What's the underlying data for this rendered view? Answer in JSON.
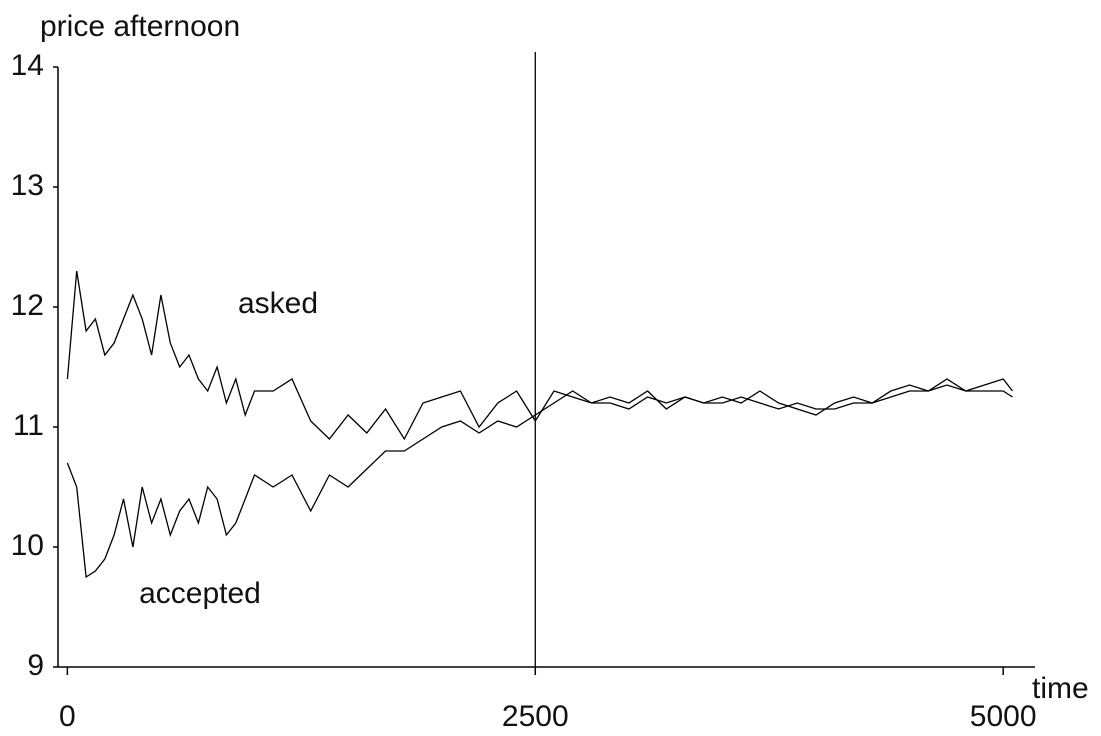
{
  "chart_data": {
    "type": "line",
    "title": "price afternoon",
    "xlabel": "time",
    "x": [
      0,
      50,
      100,
      150,
      200,
      250,
      300,
      350,
      400,
      450,
      500,
      550,
      600,
      650,
      700,
      750,
      800,
      850,
      900,
      950,
      1000,
      1100,
      1200,
      1300,
      1400,
      1500,
      1600,
      1700,
      1800,
      1900,
      2000,
      2100,
      2200,
      2300,
      2400,
      2500,
      2600,
      2700,
      2800,
      2900,
      3000,
      3100,
      3200,
      3300,
      3400,
      3500,
      3600,
      3700,
      3800,
      3900,
      4000,
      4100,
      4200,
      4300,
      4400,
      4500,
      4600,
      4700,
      4800,
      4900,
      5000,
      5050
    ],
    "series": [
      {
        "name": "asked",
        "color": "#000000",
        "values": [
          11.4,
          12.3,
          11.8,
          11.9,
          11.6,
          11.7,
          11.9,
          12.1,
          11.9,
          11.6,
          12.1,
          11.7,
          11.5,
          11.6,
          11.4,
          11.3,
          11.5,
          11.2,
          11.4,
          11.1,
          11.3,
          11.3,
          11.4,
          11.05,
          10.9,
          11.1,
          10.95,
          11.15,
          10.9,
          11.2,
          11.25,
          11.3,
          11.0,
          11.2,
          11.3,
          11.05,
          11.3,
          11.25,
          11.2,
          11.25,
          11.2,
          11.3,
          11.15,
          11.25,
          11.2,
          11.25,
          11.2,
          11.3,
          11.2,
          11.15,
          11.1,
          11.2,
          11.25,
          11.2,
          11.3,
          11.35,
          11.3,
          11.4,
          11.3,
          11.35,
          11.4,
          11.3
        ]
      },
      {
        "name": "accepted",
        "color": "#000000",
        "values": [
          10.7,
          10.5,
          9.75,
          9.8,
          9.9,
          10.1,
          10.4,
          10.0,
          10.5,
          10.2,
          10.4,
          10.1,
          10.3,
          10.4,
          10.2,
          10.5,
          10.4,
          10.1,
          10.2,
          10.4,
          10.6,
          10.5,
          10.6,
          10.3,
          10.6,
          10.5,
          10.65,
          10.8,
          10.8,
          10.9,
          11.0,
          11.05,
          10.95,
          11.05,
          11.0,
          11.1,
          11.2,
          11.3,
          11.2,
          11.2,
          11.15,
          11.25,
          11.2,
          11.25,
          11.2,
          11.2,
          11.25,
          11.2,
          11.15,
          11.2,
          11.15,
          11.15,
          11.2,
          11.2,
          11.25,
          11.3,
          11.3,
          11.35,
          11.3,
          11.3,
          11.3,
          11.25
        ]
      }
    ],
    "vertical_line": 2500,
    "xlim": [
      -50,
      5170
    ],
    "xticks": [
      0,
      2500,
      5000
    ],
    "ylim": [
      9,
      14
    ],
    "yticks": [
      9,
      10,
      11,
      12,
      13,
      14
    ],
    "grid": false
  }
}
